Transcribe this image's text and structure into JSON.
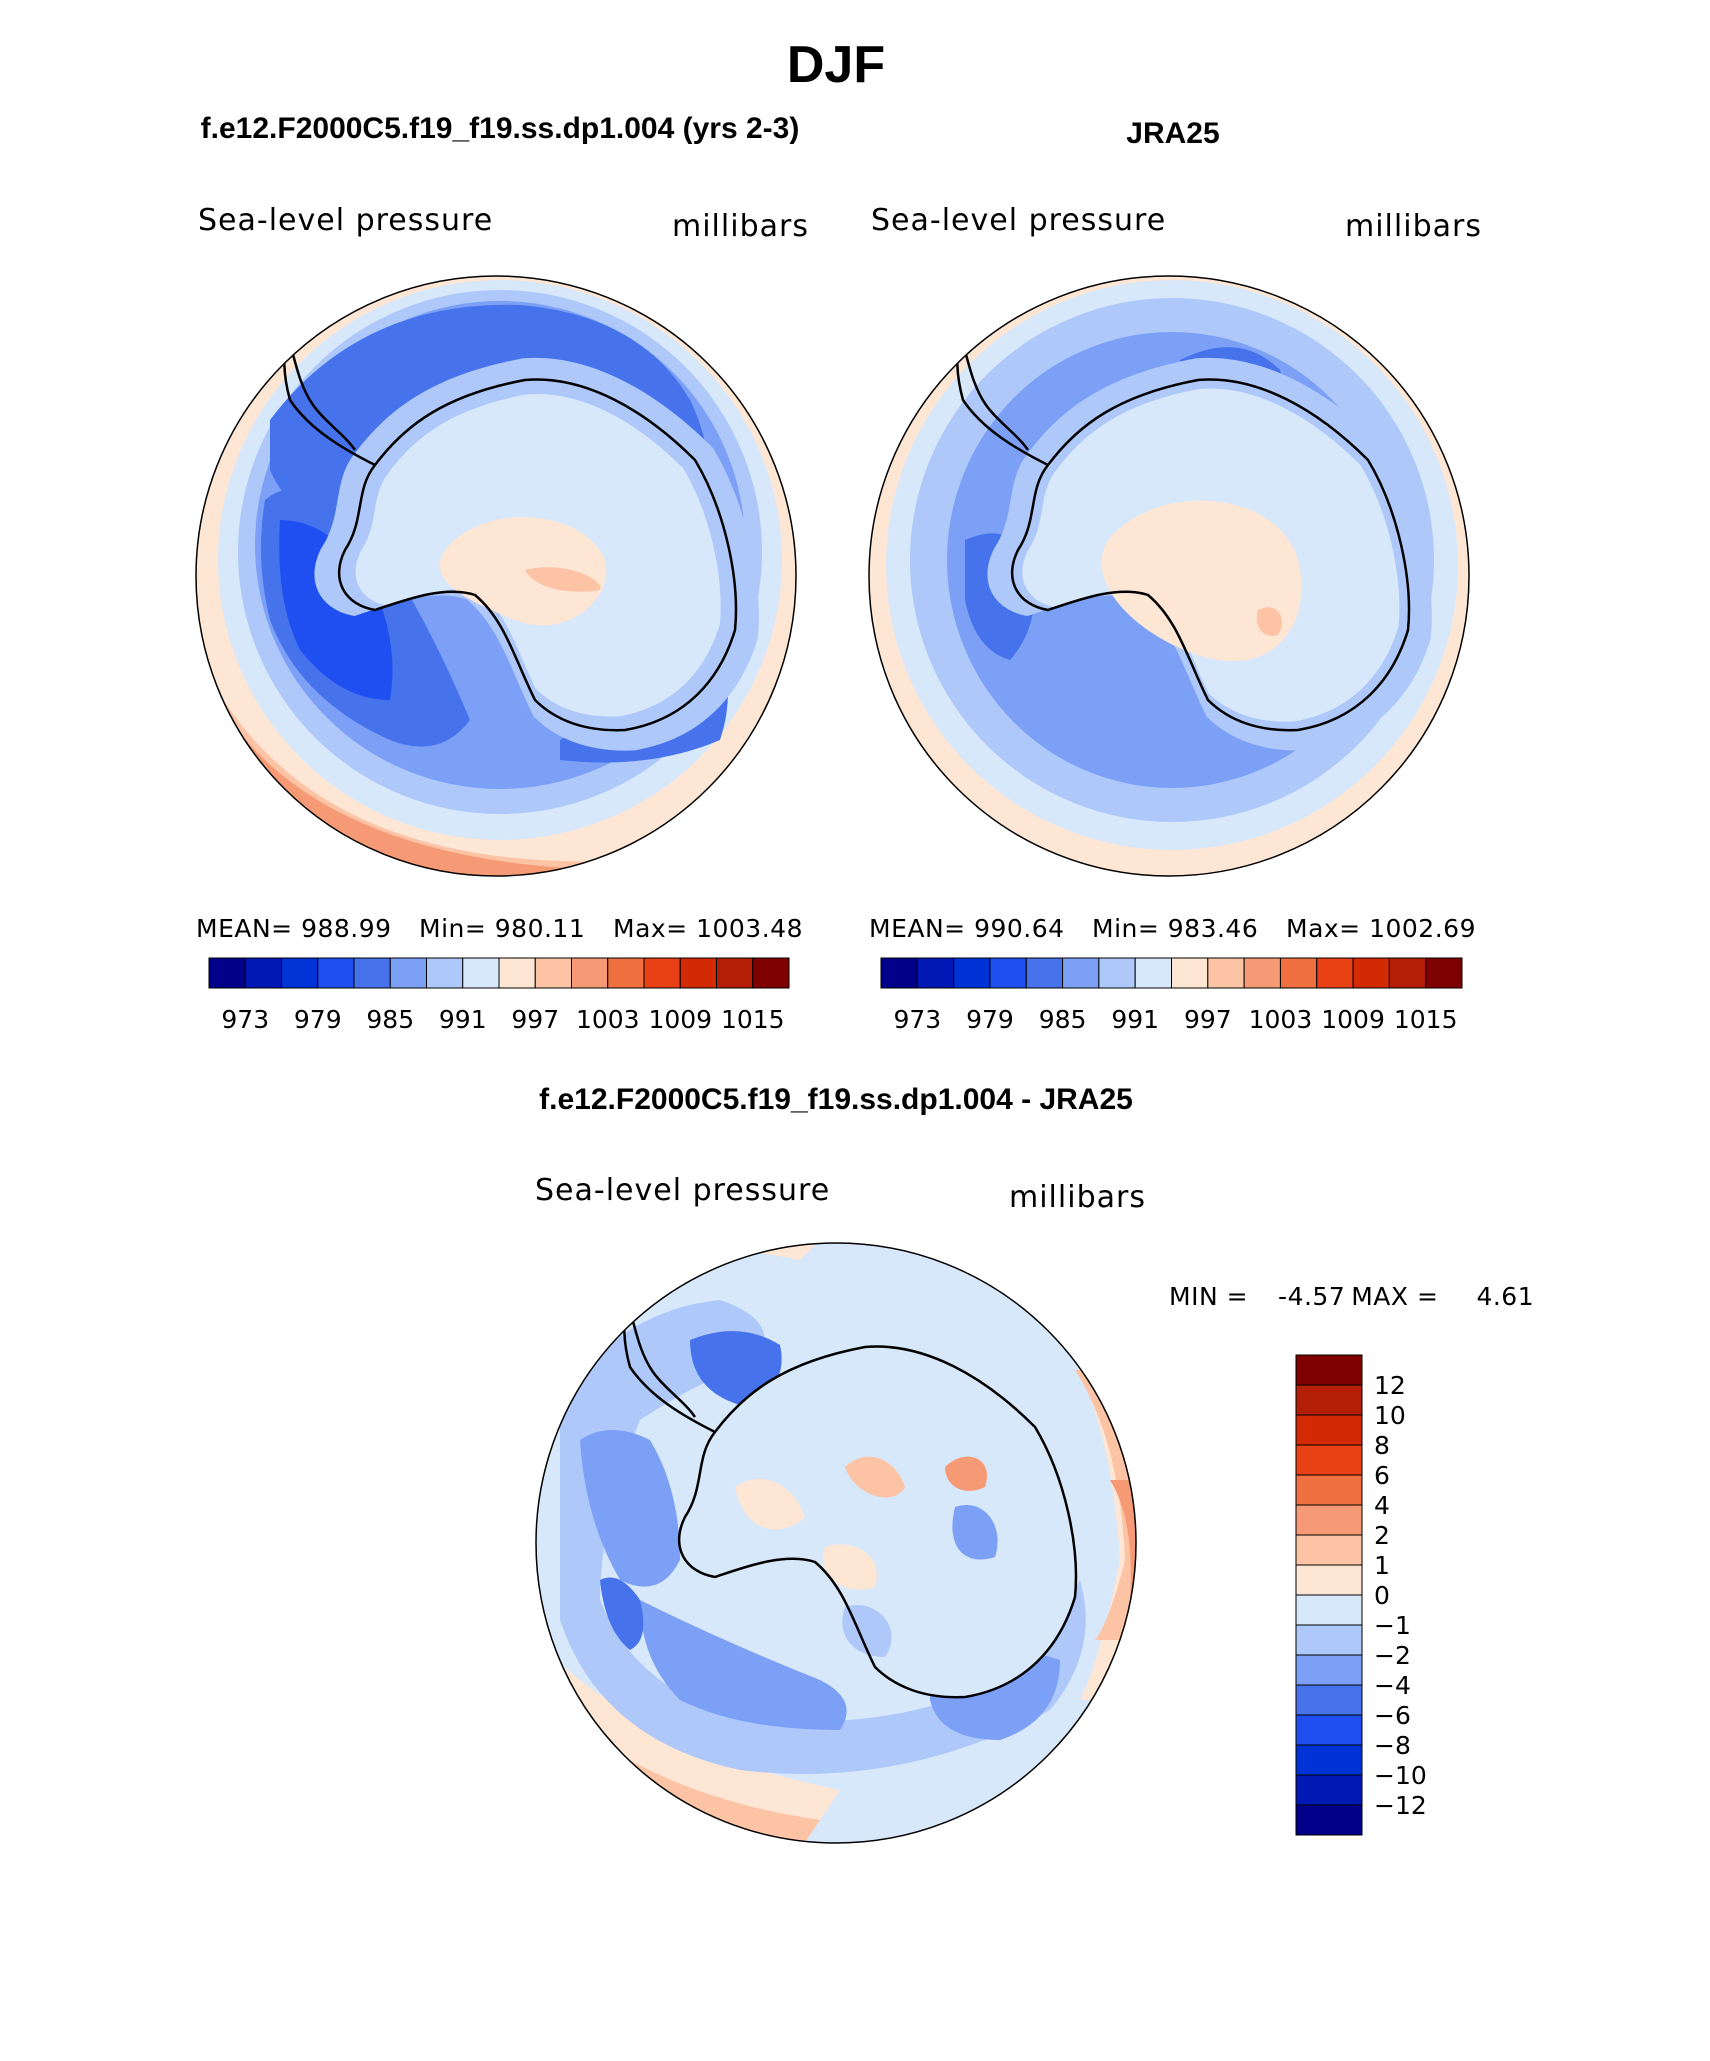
{
  "chart_data": {
    "type": "filled-contour-map",
    "title": "DJF",
    "panels": [
      {
        "id": "model",
        "case_title": "f.e12.F2000C5.f19_f19.ss.dp1.004 (yrs 2-3)",
        "left_label": "Sea-level pressure",
        "right_label": "millibars",
        "stats": {
          "mean_label": "MEAN=",
          "mean": "988.99",
          "min_label": "Min=",
          "min": "980.11",
          "max_label": "Max=",
          "max": "1003.48"
        },
        "colorbar_levels": [
          "973",
          "979",
          "985",
          "991",
          "997",
          "1003",
          "1009",
          "1015"
        ],
        "colors": [
          "#00008b",
          "#0019b4",
          "#0033d6",
          "#1f4ff0",
          "#4673ec",
          "#7da0f7",
          "#adc8f9",
          "#d8e8fb",
          "#fee6d4",
          "#fcc3a5",
          "#f69a75",
          "#f1703f",
          "#e84116",
          "#d42a04",
          "#b41e07",
          "#7f0000"
        ]
      },
      {
        "id": "obs",
        "case_title": "JRA25",
        "left_label": "Sea-level pressure",
        "right_label": "millibars",
        "stats": {
          "mean_label": "MEAN=",
          "mean": "990.64",
          "min_label": "Min=",
          "min": "983.46",
          "max_label": "Max=",
          "max": "1002.69"
        },
        "colorbar_levels": [
          "973",
          "979",
          "985",
          "991",
          "997",
          "1003",
          "1009",
          "1015"
        ],
        "colors": [
          "#00008b",
          "#0019b4",
          "#0033d6",
          "#1f4ff0",
          "#4673ec",
          "#7da0f7",
          "#adc8f9",
          "#d8e8fb",
          "#fee6d4",
          "#fcc3a5",
          "#f69a75",
          "#f1703f",
          "#e84116",
          "#d42a04",
          "#b41e07",
          "#7f0000"
        ]
      },
      {
        "id": "diff",
        "case_title": "f.e12.F2000C5.f19_f19.ss.dp1.004 - JRA25",
        "left_label": "Sea-level pressure",
        "right_label": "millibars",
        "minmax": {
          "min_label": "MIN =",
          "min": "-4.57",
          "max_label": "MAX =",
          "max": "4.61"
        },
        "colorbar_levels": [
          "12",
          "10",
          "8",
          "6",
          "4",
          "2",
          "1",
          "0",
          "−1",
          "−2",
          "−4",
          "−6",
          "−8",
          "−10",
          "−12"
        ],
        "colors": [
          "#7f0000",
          "#b41e07",
          "#d42a04",
          "#e84116",
          "#f1703f",
          "#f69a75",
          "#fcc3a5",
          "#fee6d4",
          "#d8e8fb",
          "#adc8f9",
          "#7da0f7",
          "#4673ec",
          "#1f4ff0",
          "#0033d6",
          "#0019b4",
          "#00008b"
        ]
      }
    ]
  }
}
